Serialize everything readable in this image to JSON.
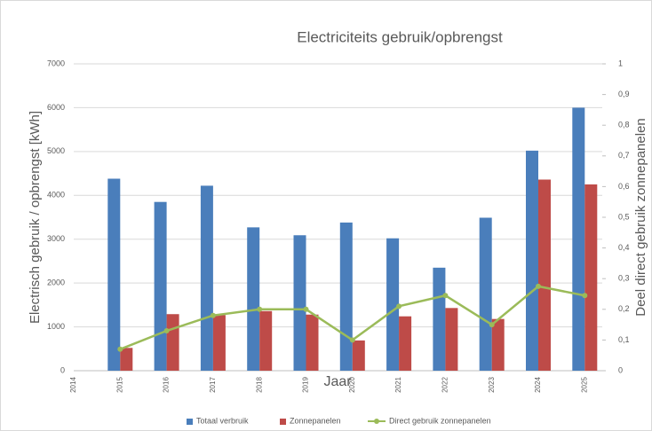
{
  "chart_data": {
    "type": "bar",
    "title": "Electriciteits gebruik/opbrengst",
    "x_label": "Jaar",
    "y_label": "Electrisch gebruik / opbrengst [kWh]",
    "y2_label": "Deel direct gebruik zonnepanelen",
    "categories": [
      "2014",
      "2015",
      "2016",
      "2017",
      "2018",
      "2019",
      "2020",
      "2021",
      "2022",
      "2023",
      "2024",
      "2025"
    ],
    "series": [
      {
        "name": "Totaal verbruik",
        "type": "bar",
        "color": "#4a7ebb",
        "values": [
          null,
          4380,
          3850,
          4220,
          3270,
          3090,
          3380,
          3020,
          2350,
          3490,
          5020,
          6000
        ]
      },
      {
        "name": "Zonnepanelen",
        "type": "bar",
        "color": "#be4b48",
        "values": [
          null,
          520,
          1290,
          1270,
          1360,
          1280,
          690,
          1240,
          1430,
          1180,
          4360,
          4250
        ]
      },
      {
        "name": "Direct gebruik zonnepanelen",
        "type": "line",
        "axis": "y2",
        "color": "#9bbb59",
        "values": [
          null,
          0.07,
          0.13,
          0.18,
          0.2,
          0.2,
          0.1,
          0.21,
          0.245,
          0.15,
          0.275,
          0.245
        ]
      }
    ],
    "ylim": [
      0,
      7000
    ],
    "yticks": [
      0,
      1000,
      2000,
      3000,
      4000,
      5000,
      6000,
      7000
    ],
    "y2lim": [
      0,
      1
    ],
    "y2ticks": [
      0,
      {
        "value": 0.1,
        "label": "0,1"
      },
      {
        "value": 0.2,
        "label": "0,2"
      },
      {
        "value": 0.3,
        "label": "0,3"
      },
      {
        "value": 0.4,
        "label": "0,4"
      },
      {
        "value": 0.5,
        "label": "0,5"
      },
      {
        "value": 0.6,
        "label": "0,6"
      },
      {
        "value": 0.7,
        "label": "0,7"
      },
      {
        "value": 0.8,
        "label": "0,8"
      },
      {
        "value": 0.9,
        "label": "0,9"
      },
      1
    ],
    "grid": true,
    "legend": "bottom"
  }
}
